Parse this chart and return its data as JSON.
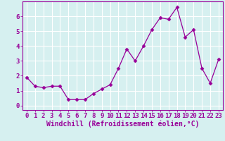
{
  "x": [
    0,
    1,
    2,
    3,
    4,
    5,
    6,
    7,
    8,
    9,
    10,
    11,
    12,
    13,
    14,
    15,
    16,
    17,
    18,
    19,
    20,
    21,
    22,
    23
  ],
  "y": [
    1.9,
    1.3,
    1.2,
    1.3,
    1.3,
    0.4,
    0.4,
    0.4,
    0.8,
    1.1,
    1.4,
    2.5,
    3.8,
    3.0,
    4.0,
    5.1,
    5.9,
    5.8,
    6.6,
    4.6,
    5.1,
    2.5,
    1.5,
    3.1
  ],
  "line_color": "#990099",
  "marker": "D",
  "marker_size": 2.5,
  "xlabel": "Windchill (Refroidissement éolien,°C)",
  "xlabel_fontsize": 7,
  "bg_color": "#d6f0f0",
  "grid_color": "#ffffff",
  "tick_color": "#990099",
  "spine_color": "#990099",
  "xlim": [
    -0.5,
    23.5
  ],
  "ylim": [
    -0.3,
    7.0
  ],
  "yticks": [
    0,
    1,
    2,
    3,
    4,
    5,
    6
  ],
  "xticks": [
    0,
    1,
    2,
    3,
    4,
    5,
    6,
    7,
    8,
    9,
    10,
    11,
    12,
    13,
    14,
    15,
    16,
    17,
    18,
    19,
    20,
    21,
    22,
    23
  ],
  "tick_labelsize": 6.5
}
